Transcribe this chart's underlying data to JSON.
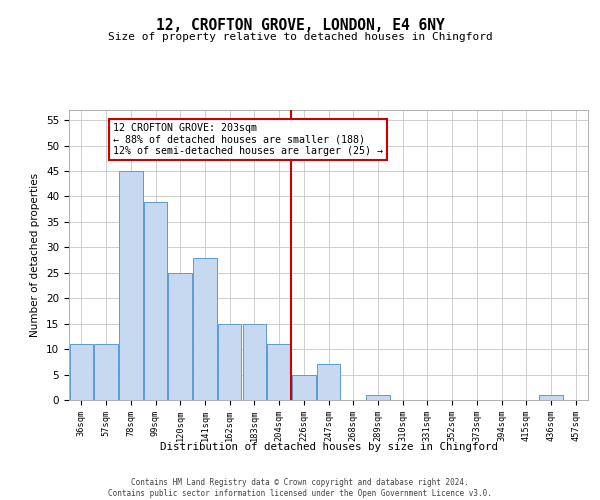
{
  "title": "12, CROFTON GROVE, LONDON, E4 6NY",
  "subtitle": "Size of property relative to detached houses in Chingford",
  "xlabel": "Distribution of detached houses by size in Chingford",
  "ylabel": "Number of detached properties",
  "bar_labels": [
    "36sqm",
    "57sqm",
    "78sqm",
    "99sqm",
    "120sqm",
    "141sqm",
    "162sqm",
    "183sqm",
    "204sqm",
    "226sqm",
    "247sqm",
    "268sqm",
    "289sqm",
    "310sqm",
    "331sqm",
    "352sqm",
    "373sqm",
    "394sqm",
    "415sqm",
    "436sqm",
    "457sqm"
  ],
  "bar_values": [
    11,
    11,
    45,
    39,
    25,
    28,
    15,
    15,
    11,
    5,
    7,
    0,
    1,
    0,
    0,
    0,
    0,
    0,
    0,
    1,
    0
  ],
  "bar_color": "#c6d9f0",
  "bar_edge_color": "#5b9bd5",
  "vline_index": 8,
  "vline_color": "#cc0000",
  "annotation_line1": "12 CROFTON GROVE: 203sqm",
  "annotation_line2": "← 88% of detached houses are smaller (188)",
  "annotation_line3": "12% of semi-detached houses are larger (25) →",
  "annotation_box_color": "#ffffff",
  "annotation_box_edge": "#cc0000",
  "ylim": [
    0,
    57
  ],
  "yticks": [
    0,
    5,
    10,
    15,
    20,
    25,
    30,
    35,
    40,
    45,
    50,
    55
  ],
  "footer_line1": "Contains HM Land Registry data © Crown copyright and database right 2024.",
  "footer_line2": "Contains public sector information licensed under the Open Government Licence v3.0.",
  "background_color": "#ffffff",
  "grid_color": "#c8c8c8"
}
